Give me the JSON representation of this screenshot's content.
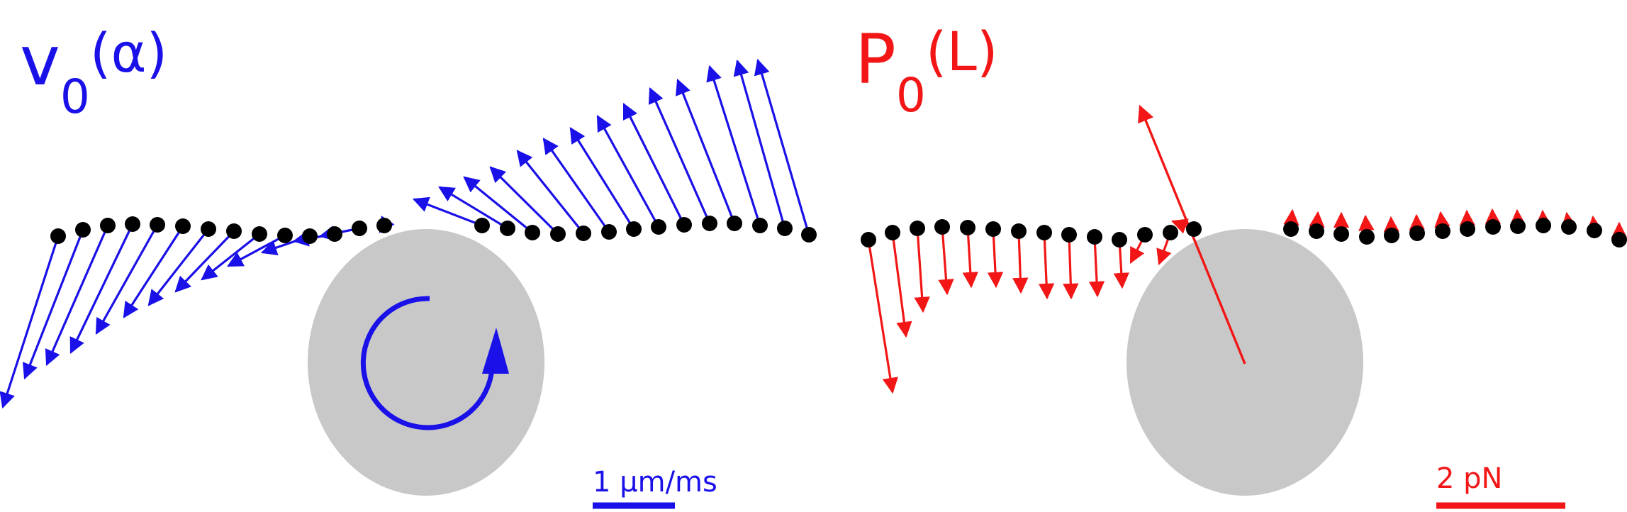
{
  "left_panel": {
    "title_main": "v",
    "title_sub": "0",
    "title_arg": "(α)",
    "scale_label": "1 μm/ms",
    "color": "#1a10e8"
  },
  "right_panel": {
    "title_main": "P",
    "title_sub": "0",
    "title_arg": "(L)",
    "scale_label": "2 pN",
    "color": "#f21616"
  },
  "colors": {
    "bead": "#000000",
    "cell": "#c8c8c8"
  },
  "icons": [
    "rotation-arrow-icon"
  ]
}
